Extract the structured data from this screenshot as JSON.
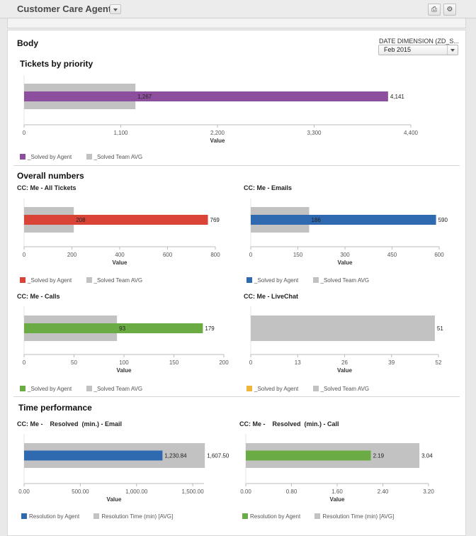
{
  "header": {
    "title": "Customer Care Agent",
    "print_icon": "print-icon",
    "settings_icon": "gear-icon"
  },
  "body": {
    "title": "Body"
  },
  "date_dimension": {
    "label": "DATE DIMENSION (ZD_S...",
    "value": "Feb 2015"
  },
  "sections": {
    "tickets": "Tickets by priority",
    "overall": "Overall numbers",
    "time": "Time performance"
  },
  "colors": {
    "purple": "#8e4e9e",
    "red": "#d94437",
    "blue": "#2f69b0",
    "green": "#6aac43",
    "yellow": "#efb43c",
    "gray": "#c2c2c2"
  },
  "chart_data": [
    {
      "id": "tickets_by_priority",
      "type": "bar",
      "title": "",
      "series": [
        {
          "name": "_Solved by Agent",
          "values": [
            4141
          ]
        },
        {
          "name": "_Solved Team AVG",
          "values": [
            1267
          ]
        }
      ],
      "data_labels": [
        "4,141",
        "1,267"
      ],
      "xlabel": "Value",
      "xlim": [
        0,
        4400
      ],
      "xticks": [
        "0",
        "1,100",
        "2,200",
        "3,300",
        "4,400"
      ],
      "legend": [
        "_Solved by Agent",
        "_Solved Team AVG"
      ]
    },
    {
      "id": "all_tickets",
      "type": "bar",
      "title": "CC: Me - All Tickets",
      "series": [
        {
          "name": "_Solved by Agent",
          "values": [
            769
          ]
        },
        {
          "name": "_Solved Team AVG",
          "values": [
            208
          ]
        }
      ],
      "data_labels": [
        "769",
        "208"
      ],
      "xlabel": "Value",
      "xlim": [
        0,
        800
      ],
      "xticks": [
        "0",
        "200",
        "400",
        "600",
        "800"
      ],
      "legend": [
        "_Solved by Agent",
        "_Solved Team AVG"
      ]
    },
    {
      "id": "emails",
      "type": "bar",
      "title": "CC: Me - Emails",
      "series": [
        {
          "name": "_Solved by Agent",
          "values": [
            590
          ]
        },
        {
          "name": "_Solved Team AVG",
          "values": [
            186
          ]
        }
      ],
      "data_labels": [
        "590",
        "186"
      ],
      "xlabel": "Value",
      "xlim": [
        0,
        600
      ],
      "xticks": [
        "0",
        "150",
        "300",
        "450",
        "600"
      ],
      "legend": [
        "_Solved by Agent",
        "_Solved Team AVG"
      ]
    },
    {
      "id": "calls",
      "type": "bar",
      "title": "CC: Me - Calls",
      "series": [
        {
          "name": "_Solved by Agent",
          "values": [
            179
          ]
        },
        {
          "name": "_Solved Team AVG",
          "values": [
            93
          ]
        }
      ],
      "data_labels": [
        "179",
        "93"
      ],
      "xlabel": "Value",
      "xlim": [
        0,
        200
      ],
      "xticks": [
        "0",
        "50",
        "100",
        "150",
        "200"
      ],
      "legend": [
        "_Solved by Agent",
        "_Solved Team AVG"
      ]
    },
    {
      "id": "livechat",
      "type": "bar",
      "title": "CC: Me - LiveChat",
      "series": [
        {
          "name": "_Solved by Agent",
          "values": [
            0
          ]
        },
        {
          "name": "_Solved Team AVG",
          "values": [
            51
          ]
        }
      ],
      "data_labels": [
        "",
        "51"
      ],
      "xlabel": "Value",
      "xlim": [
        0,
        52
      ],
      "xticks": [
        "0",
        "13",
        "26",
        "39",
        "52"
      ],
      "legend": [
        "_Solved by Agent",
        "_Solved Team AVG"
      ]
    },
    {
      "id": "resolved_email",
      "type": "bar",
      "title": "CC: Me -    Resolved  (min.) - Email",
      "series": [
        {
          "name": "Resolution by Agent",
          "values": [
            1230.84
          ]
        },
        {
          "name": "Resolution Time (min) [AVG]",
          "values": [
            1607.5
          ]
        }
      ],
      "data_labels": [
        "1,230.84",
        "1,607.50"
      ],
      "xlabel": "Value",
      "xlim": [
        0,
        1600
      ],
      "xticks": [
        "0.00",
        "500.00",
        "1,000.00",
        "1,500.00"
      ],
      "legend": [
        "Resolution by Agent",
        "Resolution Time (min) [AVG]"
      ]
    },
    {
      "id": "resolved_call",
      "type": "bar",
      "title": "CC: Me -    Resolved  (min.) - Call",
      "series": [
        {
          "name": "Resolution by Agent",
          "values": [
            2.19
          ]
        },
        {
          "name": "Resolution Time (min) [AVG]",
          "values": [
            3.04
          ]
        }
      ],
      "data_labels": [
        "2.19",
        "3.04"
      ],
      "xlabel": "Value",
      "xlim": [
        0,
        3.2
      ],
      "xticks": [
        "0.00",
        "0.80",
        "1.60",
        "2.40",
        "3.20"
      ],
      "legend": [
        "Resolution by Agent",
        "Resolution Time (min) [AVG]"
      ]
    }
  ]
}
